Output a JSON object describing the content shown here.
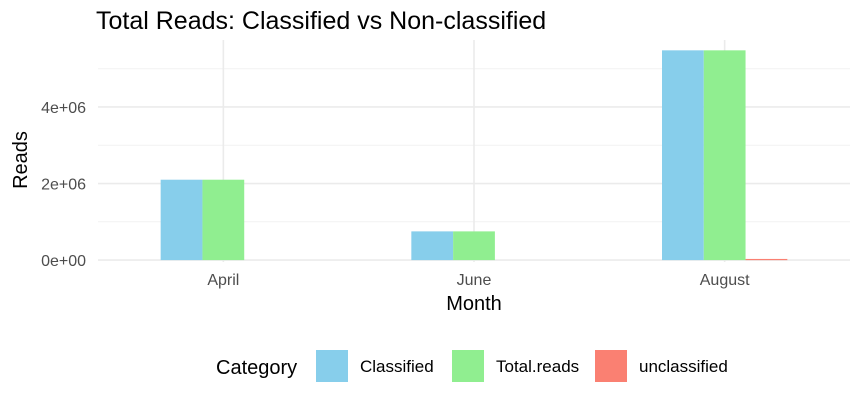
{
  "chart_data": {
    "type": "bar",
    "title": "Total Reads: Classified vs Non-classified",
    "xlabel": "Month",
    "ylabel": "Reads",
    "categories": [
      "April",
      "June",
      "August"
    ],
    "series": [
      {
        "name": "Classified",
        "color": "#87CEEB",
        "values": [
          2100000,
          750000,
          5480000
        ]
      },
      {
        "name": "Total.reads",
        "color": "#90EE90",
        "values": [
          2100000,
          750000,
          5480000
        ]
      },
      {
        "name": "unclassified",
        "color": "#FA8072",
        "values": [
          0,
          0,
          30000
        ]
      }
    ],
    "ylim": [
      -50000,
      5750000
    ],
    "yticks": [
      0,
      2000000,
      4000000
    ],
    "ytick_labels": [
      "0e+00",
      "2e+06",
      "4e+06"
    ],
    "grid": true,
    "legend": {
      "title": "Category",
      "position": "bottom"
    }
  }
}
